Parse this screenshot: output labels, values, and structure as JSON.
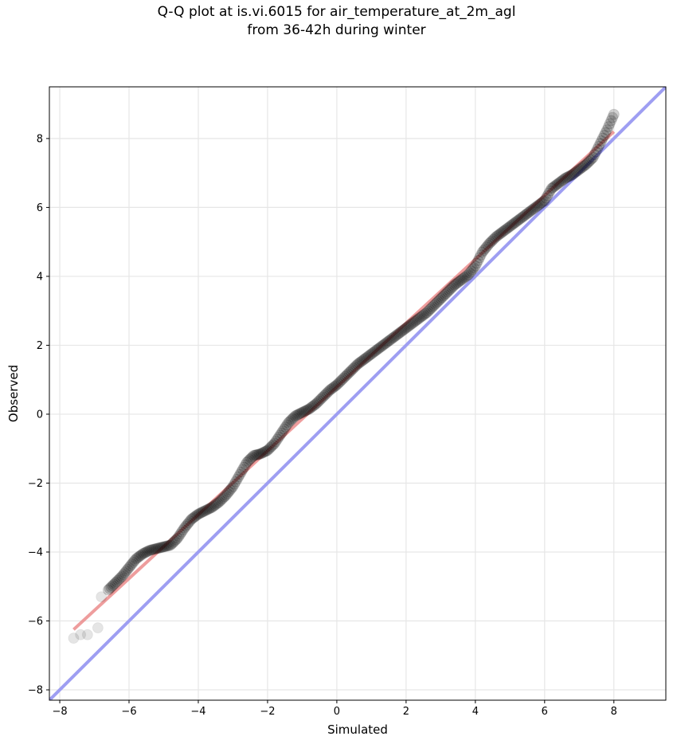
{
  "chart_data": {
    "type": "scatter",
    "title_line1": "Q-Q plot at is.vi.6015 for air_temperature_at_2m_agl",
    "title_line2": "from 36-42h during winter",
    "xlabel": "Simulated",
    "ylabel": "Observed",
    "xlim": [
      -8.3,
      9.5
    ],
    "ylim": [
      -8.3,
      9.5
    ],
    "xticks": [
      -8,
      -6,
      -4,
      -2,
      0,
      2,
      4,
      6,
      8
    ],
    "yticks": [
      -8,
      -6,
      -4,
      -2,
      0,
      2,
      4,
      6,
      8
    ],
    "grid": true,
    "colors": {
      "points": "#000000",
      "fit_line": "#e87c7c",
      "identity_line": "#9e9ef2",
      "grid": "#e6e6e6"
    },
    "identity_line": {
      "x": [
        -8.3,
        9.5
      ],
      "y": [
        -8.3,
        9.5
      ]
    },
    "fit_line": {
      "x": [
        -7.6,
        8.0
      ],
      "y": [
        -6.25,
        8.2
      ]
    },
    "quantile_curve": {
      "x": [
        -7.6,
        -7.4,
        -7.2,
        -6.9,
        -6.8,
        -6.6,
        -6.4,
        -6.2,
        -6.0,
        -5.8,
        -5.6,
        -5.4,
        -5.2,
        -5.0,
        -4.8,
        -4.6,
        -4.4,
        -4.2,
        -4.0,
        -3.8,
        -3.6,
        -3.4,
        -3.2,
        -3.0,
        -2.8,
        -2.6,
        -2.4,
        -2.2,
        -2.0,
        -1.8,
        -1.6,
        -1.4,
        -1.2,
        -1.0,
        -0.8,
        -0.6,
        -0.4,
        -0.2,
        0.0,
        0.2,
        0.4,
        0.6,
        0.8,
        1.0,
        1.2,
        1.4,
        1.6,
        1.8,
        2.0,
        2.2,
        2.4,
        2.6,
        2.8,
        3.0,
        3.2,
        3.4,
        3.6,
        3.8,
        4.0,
        4.2,
        4.4,
        4.6,
        4.8,
        5.0,
        5.2,
        5.4,
        5.6,
        5.8,
        6.0,
        6.2,
        6.4,
        6.6,
        6.8,
        7.0,
        7.2,
        7.4,
        7.6,
        7.8,
        8.0
      ],
      "y": [
        -6.5,
        -6.4,
        -6.4,
        -6.2,
        -5.3,
        -5.1,
        -4.9,
        -4.7,
        -4.45,
        -4.2,
        -4.05,
        -3.95,
        -3.9,
        -3.85,
        -3.8,
        -3.6,
        -3.3,
        -3.05,
        -2.9,
        -2.8,
        -2.7,
        -2.55,
        -2.35,
        -2.1,
        -1.75,
        -1.4,
        -1.2,
        -1.15,
        -1.05,
        -0.85,
        -0.55,
        -0.25,
        -0.05,
        0.05,
        0.15,
        0.3,
        0.5,
        0.7,
        0.85,
        1.05,
        1.25,
        1.45,
        1.6,
        1.75,
        1.9,
        2.05,
        2.2,
        2.35,
        2.5,
        2.65,
        2.8,
        2.95,
        3.15,
        3.35,
        3.55,
        3.75,
        3.9,
        4.05,
        4.3,
        4.7,
        4.95,
        5.15,
        5.3,
        5.45,
        5.6,
        5.75,
        5.9,
        6.05,
        6.2,
        6.55,
        6.7,
        6.85,
        6.95,
        7.1,
        7.25,
        7.45,
        7.85,
        8.25,
        8.7
      ]
    }
  }
}
